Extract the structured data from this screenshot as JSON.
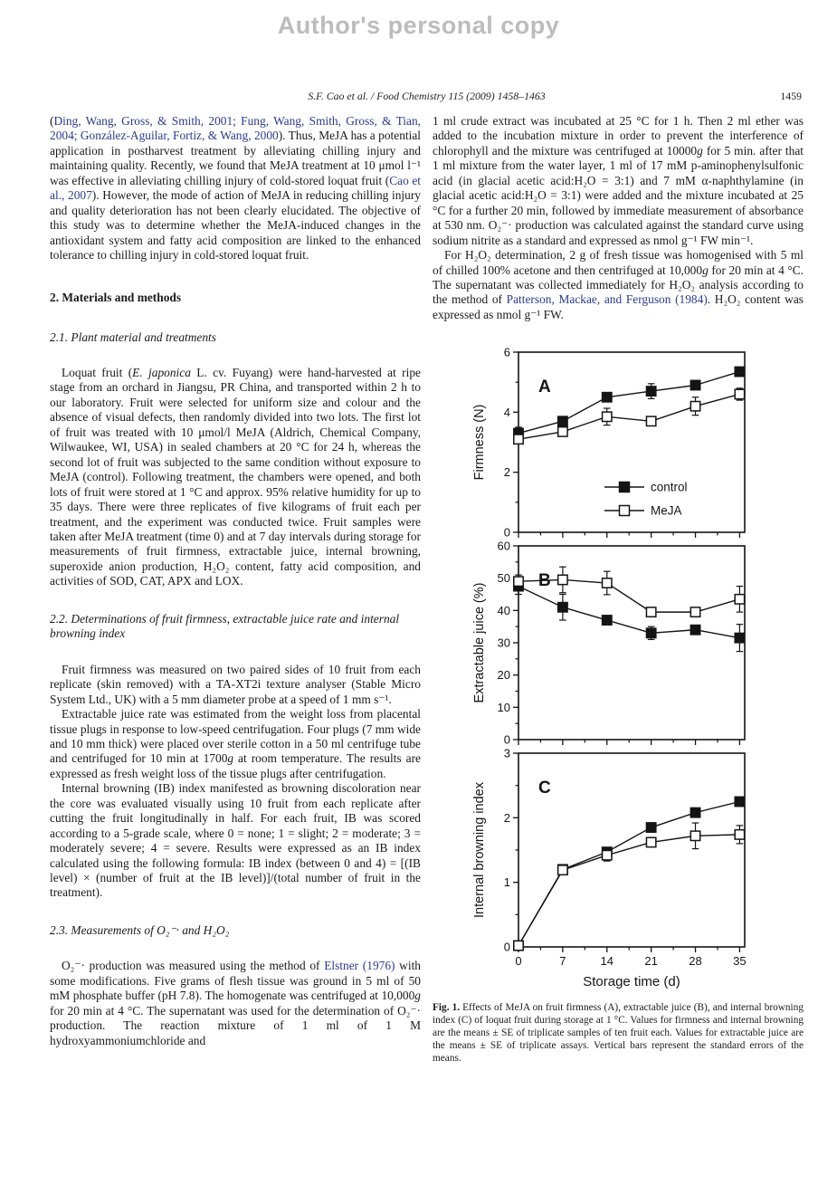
{
  "page": {
    "watermark": "Author's personal copy",
    "running_head": "S.F. Cao et al. / Food Chemistry 115 (2009) 1458–1463",
    "page_number": "1459"
  },
  "colors": {
    "text": "#1a1a1a",
    "citation_link": "#2d3a8c",
    "watermark": "#bcbcbc",
    "chart_ink": "#141414"
  },
  "left_column": {
    "para_intro": [
      {
        "t": "(",
        "s": "plain"
      },
      {
        "t": "Ding, Wang, Gross, & Smith, 2001; Fung, Wang, Smith, Gross, & Tian, 2004; González-Aguilar, Fortiz, & Wang, 2000",
        "s": "cite"
      },
      {
        "t": "). Thus, MeJA has a potential application in postharvest treatment by alleviating chilling injury and maintaining quality. Recently, we found that MeJA treatment at 10 μmol l⁻¹ was effective in alleviating chilling injury of cold-stored loquat fruit (",
        "s": "plain"
      },
      {
        "t": "Cao et al., 2007",
        "s": "cite"
      },
      {
        "t": "). However, the mode of action of MeJA in reducing chilling injury and quality deterioration has not been clearly elucidated. The objective of this study was to determine whether the MeJA-induced changes in the antioxidant system and fatty acid composition are linked to the enhanced tolerance to chilling injury in cold-stored loquat fruit.",
        "s": "plain"
      }
    ],
    "heading_methods": "2. Materials and methods",
    "heading_2_1": "2.1. Plant material and treatments",
    "para_plant": [
      {
        "t": "Loquat fruit (",
        "s": "plain"
      },
      {
        "t": "E. japonica",
        "s": "italic"
      },
      {
        "t": " L. cv. Fuyang) were hand-harvested at ripe stage from an orchard in Jiangsu, PR China, and transported within 2 h to our laboratory. Fruit were selected for uniform size and colour and the absence of visual defects, then randomly divided into two lots. The first lot of fruit was treated with 10 μmol/l MeJA (Aldrich, Chemical Company, Wilwaukee, WI, USA) in sealed chambers at 20 °C for 24 h, whereas the second lot of fruit was subjected to the same condition without exposure to MeJA (control). Following treatment, the chambers were opened, and both lots of fruit were stored at 1 °C and approx. 95% relative humidity for up to 35 days. There were three replicates of five kilograms of fruit each per treatment, and the experiment was conducted twice. Fruit samples were taken after MeJA treatment (time 0) and at 7 day intervals during storage for measurements of fruit firmness, extractable juice, internal browning, superoxide anion production, H₂O₂ content, fatty acid composition, and activities of SOD, CAT, APX and LOX.",
        "s": "plain"
      }
    ],
    "heading_2_2": "2.2. Determinations of fruit firmness, extractable juice rate and internal browning index",
    "para_firmness": [
      {
        "t": "Fruit firmness was measured on two paired sides of 10 fruit from each replicate (skin removed) with a TA-XT2i texture analyser (Stable Micro System Ltd., UK) with a 5 mm diameter probe at a speed of 1 mm s⁻¹.",
        "s": "plain"
      }
    ],
    "para_juice": [
      {
        "t": "Extractable juice rate was estimated from the weight loss from placental tissue plugs in response to low-speed centrifugation. Four plugs (7 mm wide and 10 mm thick) were placed over sterile cotton in a 50 ml centrifuge tube and centrifuged for 10 min at 1700",
        "s": "plain"
      },
      {
        "t": "g",
        "s": "italic"
      },
      {
        "t": " at room temperature. The results are expressed as fresh weight loss of the tissue plugs after centrifugation.",
        "s": "plain"
      }
    ],
    "para_ib": [
      {
        "t": "Internal browning (IB) index manifested as browning discoloration near the core was evaluated visually using 10 fruit from each replicate after cutting the fruit longitudinally in half. For each fruit, IB was scored according to a 5-grade scale, where 0 = none; 1 = slight; 2 = moderate; 3 = moderately severe; 4 = severe. Results were expressed as an IB index calculated using the following formula: IB index (between 0 and 4) = [(IB level) × (number of fruit at the IB level)]/(total number of fruit in the treatment).",
        "s": "plain"
      }
    ],
    "heading_2_3": "2.3. Measurements of O₂⁻· and H₂O₂",
    "para_o2": [
      {
        "t": "O₂⁻· production was measured using the method of ",
        "s": "plain"
      },
      {
        "t": "Elstner (1976)",
        "s": "cite"
      },
      {
        "t": " with some modifications. Five grams of flesh tissue was ground in 5 ml of 50 mM phosphate buffer (pH 7.8). The homogenate was centrifuged at 10,000",
        "s": "plain"
      },
      {
        "t": "g",
        "s": "italic"
      },
      {
        "t": " for 20 min at 4 °C. The supernatant was used for the determination of O₂⁻· production. The reaction mixture of 1 ml of 1 M hydroxyammoniumchloride and",
        "s": "plain"
      }
    ]
  },
  "right_column": {
    "para_crude": [
      {
        "t": "1 ml crude extract was incubated at 25 °C for 1 h. Then 2 ml ether was added to the incubation mixture in order to prevent the interference of chlorophyll and the mixture was centrifuged at 10000",
        "s": "plain"
      },
      {
        "t": "g",
        "s": "italic"
      },
      {
        "t": " for 5 min. after that 1 ml mixture from the water layer, 1 ml of 17 mM p-aminophenylsulfonic acid (in glacial acetic acid:H₂O = 3:1) and 7 mM α-naphthylamine (in glacial acetic acid:H₂O = 3:1) were added and the mixture incubated at 25 °C for a further 20 min, followed by immediate measurement of absorbance at 530 nm. O₂⁻· production was calculated against the standard curve using sodium nitrite as a standard and expressed as nmol g⁻¹ FW min⁻¹.",
        "s": "plain"
      }
    ],
    "para_h2o2": [
      {
        "t": "For H₂O₂ determination, 2 g of fresh tissue was homogenised with 5 ml of chilled 100% acetone and then centrifuged at 10,000",
        "s": "plain"
      },
      {
        "t": "g",
        "s": "italic"
      },
      {
        "t": " for 20 min at 4 °C. The supernatant was collected immediately for H₂O₂ analysis according to the method of ",
        "s": "plain"
      },
      {
        "t": "Patterson, Mackae, and Ferguson (1984)",
        "s": "cite"
      },
      {
        "t": ". H₂O₂ content was expressed as nmol g⁻¹ FW.",
        "s": "plain"
      }
    ]
  },
  "figure": {
    "caption": [
      {
        "t": "Fig. 1.",
        "s": "bold"
      },
      {
        "t": " Effects of MeJA on fruit firmness (A), extractable juice (B), and internal browning index (C) of loquat fruit during storage at 1 °C. Values for firmness and internal browning are the means ± SE of triplicate samples of ten fruit each. Values for extractable juice are the means ± SE of triplicate assays. Vertical bars represent the standard errors of the means.",
        "s": "plain"
      }
    ]
  },
  "chart_data": [
    {
      "type": "line",
      "panel": "A",
      "ylabel": "Firmness (N)",
      "ylim": [
        0,
        6
      ],
      "yticks": [
        0,
        2,
        4,
        6
      ],
      "yminor": [
        1,
        3,
        5
      ],
      "x": [
        0,
        7,
        14,
        21,
        28,
        35
      ],
      "xlim": [
        0,
        35.8
      ],
      "xminor": [
        3.5,
        10.5,
        17.5,
        24.5,
        31.5
      ],
      "show_x_labels": false,
      "legend": [
        {
          "name": "control",
          "marker": "filled-square"
        },
        {
          "name": "MeJA",
          "marker": "open-square"
        }
      ],
      "series": [
        {
          "name": "control",
          "marker": "filled-square",
          "values": [
            3.3,
            3.7,
            4.5,
            4.7,
            4.9,
            5.35
          ],
          "errors": [
            0.2,
            0.1,
            0.1,
            0.25,
            0.12,
            0.15
          ]
        },
        {
          "name": "MeJA",
          "marker": "open-square",
          "values": [
            3.1,
            3.35,
            3.85,
            3.7,
            4.2,
            4.6
          ],
          "errors": [
            0.15,
            0.12,
            0.28,
            0.06,
            0.3,
            0.2
          ]
        }
      ]
    },
    {
      "type": "line",
      "panel": "B",
      "ylabel": "Extractable juice (%)",
      "ylim": [
        0,
        60
      ],
      "yticks": [
        0,
        10,
        20,
        30,
        40,
        50,
        60
      ],
      "yminor": [
        5,
        15,
        25,
        35,
        45,
        55
      ],
      "x": [
        0,
        7,
        14,
        21,
        28,
        35
      ],
      "xlim": [
        0,
        35.8
      ],
      "xminor": [
        3.5,
        10.5,
        17.5,
        24.5,
        31.5
      ],
      "show_x_labels": false,
      "series": [
        {
          "name": "control",
          "marker": "filled-square",
          "values": [
            47.5,
            41,
            37,
            33,
            34,
            31.5
          ],
          "errors": [
            2.5,
            4,
            1.2,
            2,
            1,
            4.2
          ]
        },
        {
          "name": "MeJA",
          "marker": "open-square",
          "values": [
            49,
            49.5,
            48.5,
            39.5,
            39.5,
            43.5
          ],
          "errors": [
            2,
            4,
            3.6,
            1.2,
            1.2,
            4
          ]
        }
      ]
    },
    {
      "type": "line",
      "panel": "C",
      "ylabel": "Internal browning index",
      "xlabel": "Storage time (d)",
      "ylim": [
        0,
        3
      ],
      "yticks": [
        0,
        1,
        2,
        3
      ],
      "yminor": [
        0.5,
        1.5,
        2.5
      ],
      "x": [
        0,
        7,
        14,
        21,
        28,
        35
      ],
      "xlim": [
        0,
        35.8
      ],
      "xminor": [
        3.5,
        10.5,
        17.5,
        24.5,
        31.5
      ],
      "show_x_labels": true,
      "series": [
        {
          "name": "control",
          "marker": "filled-square",
          "values": [
            0.02,
            1.2,
            1.47,
            1.85,
            2.08,
            2.25
          ],
          "errors": [
            0,
            0.04,
            0.06,
            0.04,
            0.05,
            0.05
          ]
        },
        {
          "name": "MeJA",
          "marker": "open-square",
          "values": [
            0.02,
            1.19,
            1.42,
            1.62,
            1.72,
            1.74
          ],
          "errors": [
            0,
            0.05,
            0.09,
            0.07,
            0.2,
            0.14
          ]
        }
      ]
    }
  ]
}
